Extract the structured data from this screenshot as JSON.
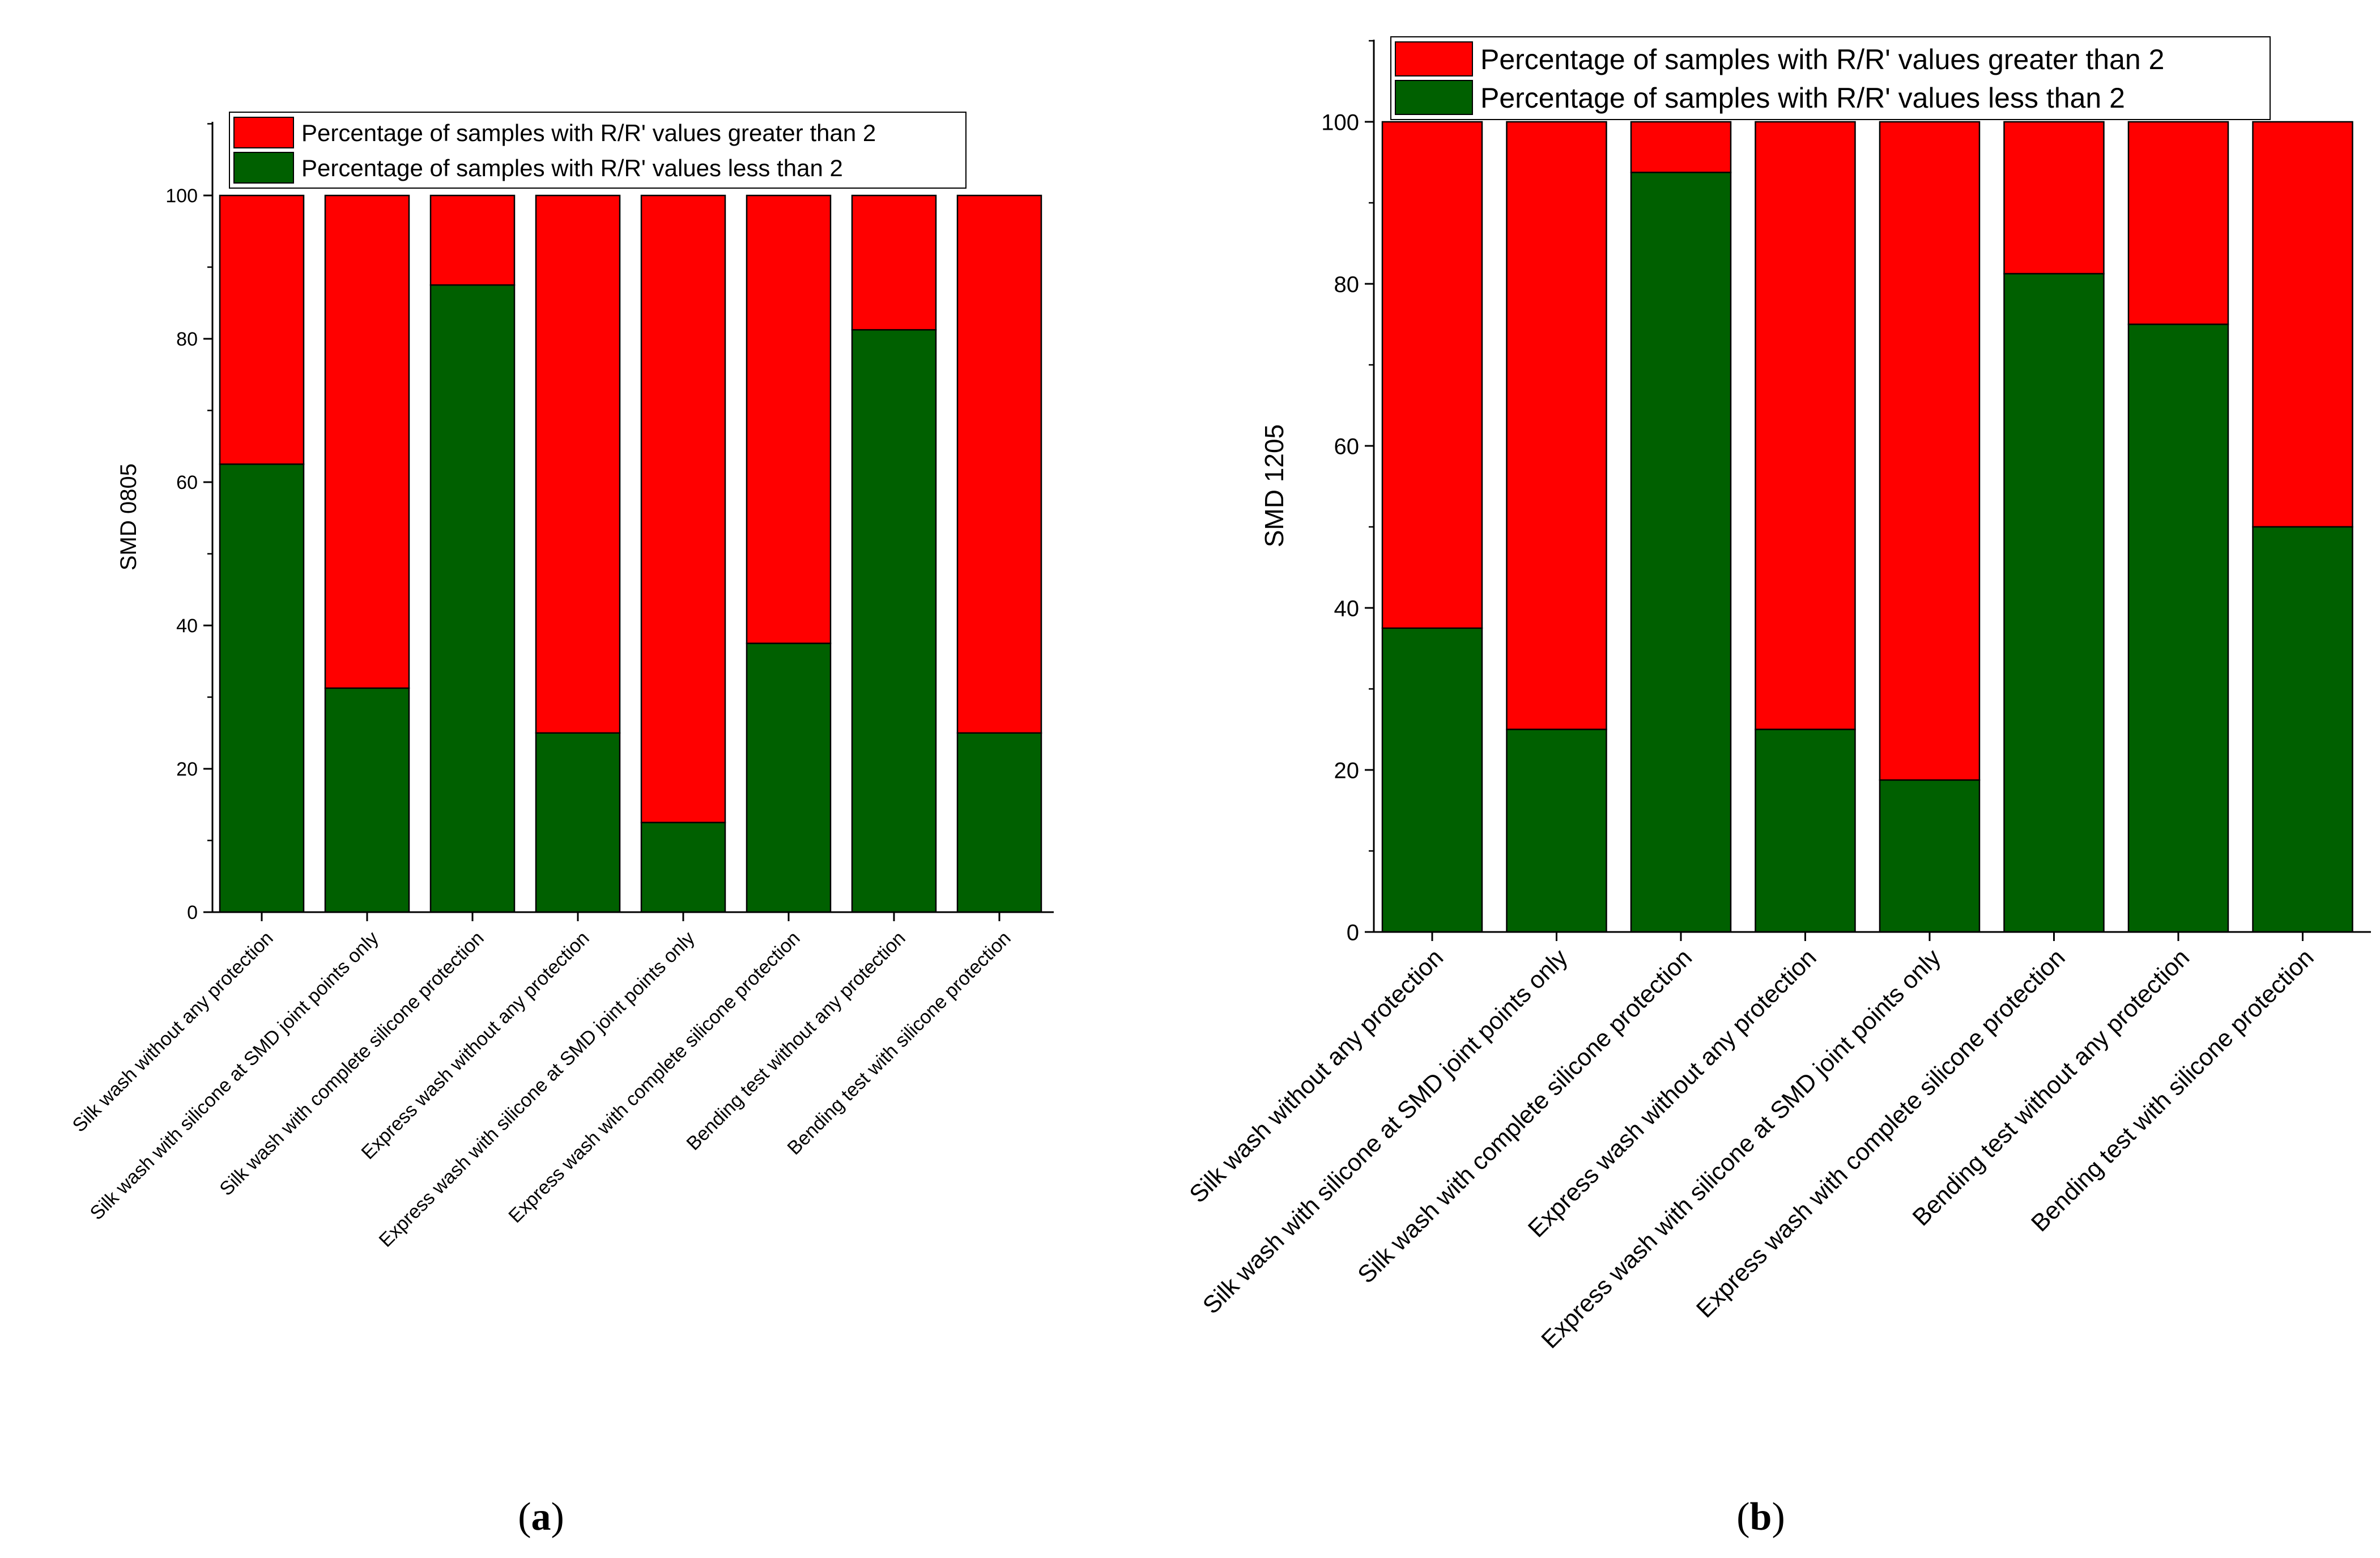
{
  "colors": {
    "above": "#ff0000",
    "below": "#006000",
    "axis": "#000000",
    "background": "#ffffff"
  },
  "chart_data": [
    {
      "type": "bar",
      "stacked": true,
      "panel_label": "(a)",
      "panel_label_parts": {
        "open": "(",
        "letter": "a",
        "close": ")"
      },
      "ylabel": "SMD 0805",
      "xlabel": "",
      "ylim": [
        0,
        110
      ],
      "yticks": [
        0,
        20,
        40,
        60,
        80,
        100
      ],
      "legend_position": "top",
      "categories": [
        "Silk wash without any protection",
        "Silk wash with silicone at SMD joint points only",
        "Silk wash with complete silicone protection",
        "Express wash without any protection",
        "Express wash with silicone at SMD joint points only",
        "Express wash with complete silicone protection",
        "Bending test without any protection",
        "Bending test with silicone protection"
      ],
      "series": [
        {
          "name": "Percentage of samples with R/R' values less than 2",
          "key": "below",
          "values": [
            62.5,
            31.25,
            87.5,
            25,
            12.5,
            37.5,
            81.25,
            25
          ]
        },
        {
          "name": "Percentage of samples with R/R' values greater than 2",
          "key": "above",
          "values": [
            37.5,
            68.75,
            12.5,
            75,
            87.5,
            62.5,
            18.75,
            75
          ]
        }
      ],
      "legend_entries": [
        "Percentage of samples with R/R' values greater than 2",
        "Percentage of samples with R/R' values less than 2"
      ]
    },
    {
      "type": "bar",
      "stacked": true,
      "panel_label": "(b)",
      "panel_label_parts": {
        "open": "(",
        "letter": "b",
        "close": ")"
      },
      "ylabel": "SMD 1205",
      "xlabel": "",
      "ylim": [
        0,
        110
      ],
      "yticks": [
        0,
        20,
        40,
        60,
        80,
        100
      ],
      "legend_position": "top",
      "categories": [
        "Silk wash without any protection",
        "Silk wash with silicone at SMD joint points only",
        "Silk wash with complete silicone protection",
        "Express wash without any protection",
        "Express wash with silicone at SMD joint points only",
        "Express wash with complete silicone protection",
        "Bending test without any protection",
        "Bending test with silicone protection"
      ],
      "series": [
        {
          "name": "Percentage of samples with R/R' values less than 2",
          "key": "below",
          "values": [
            37.5,
            25,
            93.75,
            25,
            18.75,
            81.25,
            75,
            50
          ]
        },
        {
          "name": "Percentage of samples with R/R' values greater than 2",
          "key": "above",
          "values": [
            62.5,
            75,
            6.25,
            75,
            81.25,
            18.75,
            25,
            50
          ]
        }
      ],
      "legend_entries": [
        "Percentage of samples with R/R' values greater than 2",
        "Percentage of samples with R/R' values less than 2"
      ]
    }
  ]
}
